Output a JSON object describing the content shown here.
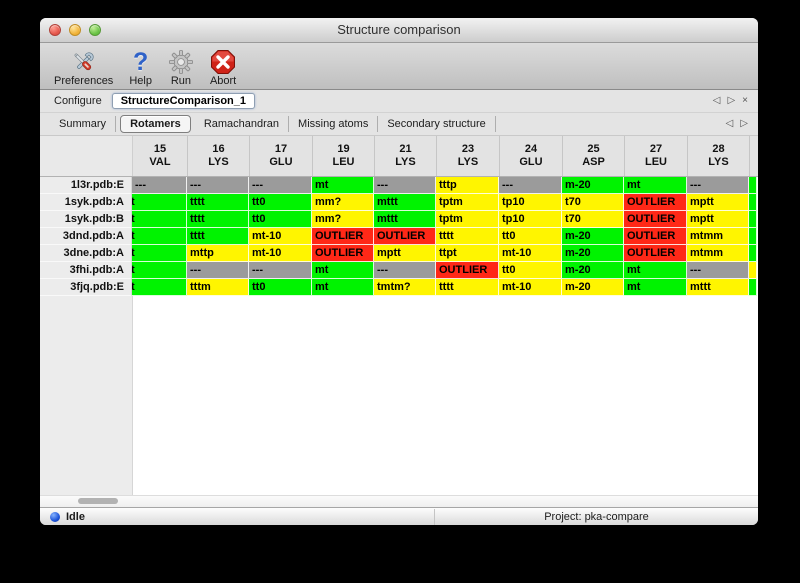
{
  "window": {
    "title": "Structure comparison"
  },
  "toolbar": {
    "items": [
      {
        "label": "Preferences",
        "icon": "tools-icon"
      },
      {
        "label": "Help",
        "icon": "help-icon"
      },
      {
        "label": "Run",
        "icon": "gear-icon"
      },
      {
        "label": "Abort",
        "icon": "abort-icon"
      }
    ]
  },
  "configure": {
    "label": "Configure",
    "value": "StructureComparison_1",
    "nav": {
      "prev": "◁",
      "next": "▷",
      "close": "×"
    }
  },
  "tabs": {
    "selected": "Rotamers",
    "items": [
      "Summary",
      "Rotamers",
      "Ramachandran",
      "Missing atoms",
      "Secondary structure"
    ],
    "nav": {
      "prev": "◁",
      "next": "▷"
    }
  },
  "table": {
    "columns": [
      {
        "num": "15",
        "res": "VAL"
      },
      {
        "num": "16",
        "res": "LYS"
      },
      {
        "num": "17",
        "res": "GLU"
      },
      {
        "num": "19",
        "res": "LEU"
      },
      {
        "num": "21",
        "res": "LYS"
      },
      {
        "num": "23",
        "res": "LYS"
      },
      {
        "num": "24",
        "res": "GLU"
      },
      {
        "num": "25",
        "res": "ASP"
      },
      {
        "num": "27",
        "res": "LEU"
      },
      {
        "num": "28",
        "res": "LYS"
      }
    ],
    "rows": [
      {
        "label": "1l3r.pdb:E",
        "edge": "green",
        "cells": [
          {
            "text": "---",
            "color": "gray"
          },
          {
            "text": "---",
            "color": "gray"
          },
          {
            "text": "---",
            "color": "gray"
          },
          {
            "text": "mt",
            "color": "green"
          },
          {
            "text": "---",
            "color": "gray"
          },
          {
            "text": "tttp",
            "color": "yellow"
          },
          {
            "text": "---",
            "color": "gray"
          },
          {
            "text": "m-20",
            "color": "green"
          },
          {
            "text": "mt",
            "color": "green"
          },
          {
            "text": "---",
            "color": "gray"
          }
        ]
      },
      {
        "label": "1syk.pdb:A",
        "edge": "green",
        "cells": [
          {
            "text": "t",
            "color": "green",
            "clipped": true
          },
          {
            "text": "tttt",
            "color": "green"
          },
          {
            "text": "tt0",
            "color": "green"
          },
          {
            "text": "mm?",
            "color": "yellow"
          },
          {
            "text": "mttt",
            "color": "green"
          },
          {
            "text": "tptm",
            "color": "yellow"
          },
          {
            "text": "tp10",
            "color": "yellow"
          },
          {
            "text": "t70",
            "color": "yellow"
          },
          {
            "text": "OUTLIER",
            "color": "red"
          },
          {
            "text": "mptt",
            "color": "yellow"
          }
        ]
      },
      {
        "label": "1syk.pdb:B",
        "edge": "green",
        "cells": [
          {
            "text": "t",
            "color": "green",
            "clipped": true
          },
          {
            "text": "tttt",
            "color": "green"
          },
          {
            "text": "tt0",
            "color": "green"
          },
          {
            "text": "mm?",
            "color": "yellow"
          },
          {
            "text": "mttt",
            "color": "green"
          },
          {
            "text": "tptm",
            "color": "yellow"
          },
          {
            "text": "tp10",
            "color": "yellow"
          },
          {
            "text": "t70",
            "color": "yellow"
          },
          {
            "text": "OUTLIER",
            "color": "red"
          },
          {
            "text": "mptt",
            "color": "yellow"
          }
        ]
      },
      {
        "label": "3dnd.pdb:A",
        "edge": "green",
        "cells": [
          {
            "text": "t",
            "color": "green",
            "clipped": true
          },
          {
            "text": "tttt",
            "color": "green"
          },
          {
            "text": "mt-10",
            "color": "yellow"
          },
          {
            "text": "OUTLIER",
            "color": "red"
          },
          {
            "text": "OUTLIER",
            "color": "red"
          },
          {
            "text": "tttt",
            "color": "yellow"
          },
          {
            "text": "tt0",
            "color": "yellow"
          },
          {
            "text": "m-20",
            "color": "green"
          },
          {
            "text": "OUTLIER",
            "color": "red"
          },
          {
            "text": "mtmm",
            "color": "yellow"
          }
        ]
      },
      {
        "label": "3dne.pdb:A",
        "edge": "green",
        "cells": [
          {
            "text": "t",
            "color": "green",
            "clipped": true
          },
          {
            "text": "mttp",
            "color": "yellow"
          },
          {
            "text": "mt-10",
            "color": "yellow"
          },
          {
            "text": "OUTLIER",
            "color": "red"
          },
          {
            "text": "mptt",
            "color": "yellow"
          },
          {
            "text": "ttpt",
            "color": "yellow"
          },
          {
            "text": "mt-10",
            "color": "yellow"
          },
          {
            "text": "m-20",
            "color": "green"
          },
          {
            "text": "OUTLIER",
            "color": "red"
          },
          {
            "text": "mtmm",
            "color": "yellow"
          }
        ]
      },
      {
        "label": "3fhi.pdb:A",
        "edge": "yellow",
        "cells": [
          {
            "text": "t",
            "color": "green",
            "clipped": true
          },
          {
            "text": "---",
            "color": "gray"
          },
          {
            "text": "---",
            "color": "gray"
          },
          {
            "text": "mt",
            "color": "green"
          },
          {
            "text": "---",
            "color": "gray"
          },
          {
            "text": "OUTLIER",
            "color": "red"
          },
          {
            "text": "tt0",
            "color": "yellow"
          },
          {
            "text": "m-20",
            "color": "green"
          },
          {
            "text": "mt",
            "color": "green"
          },
          {
            "text": "---",
            "color": "gray"
          }
        ]
      },
      {
        "label": "3fjq.pdb:E",
        "edge": "green",
        "cells": [
          {
            "text": "t",
            "color": "green",
            "clipped": true
          },
          {
            "text": "tttm",
            "color": "yellow"
          },
          {
            "text": "tt0",
            "color": "green"
          },
          {
            "text": "mt",
            "color": "green"
          },
          {
            "text": "tmtm?",
            "color": "yellow"
          },
          {
            "text": "tttt",
            "color": "yellow"
          },
          {
            "text": "mt-10",
            "color": "yellow"
          },
          {
            "text": "m-20",
            "color": "yellow"
          },
          {
            "text": "mt",
            "color": "green"
          },
          {
            "text": "mttt",
            "color": "yellow"
          }
        ]
      }
    ]
  },
  "statusbar": {
    "status": "Idle",
    "project": "Project: pka-compare"
  },
  "colors": {
    "green": "#00f300",
    "yellow": "#fff500",
    "red": "#ff2817",
    "gray": "#9b9b9b"
  }
}
